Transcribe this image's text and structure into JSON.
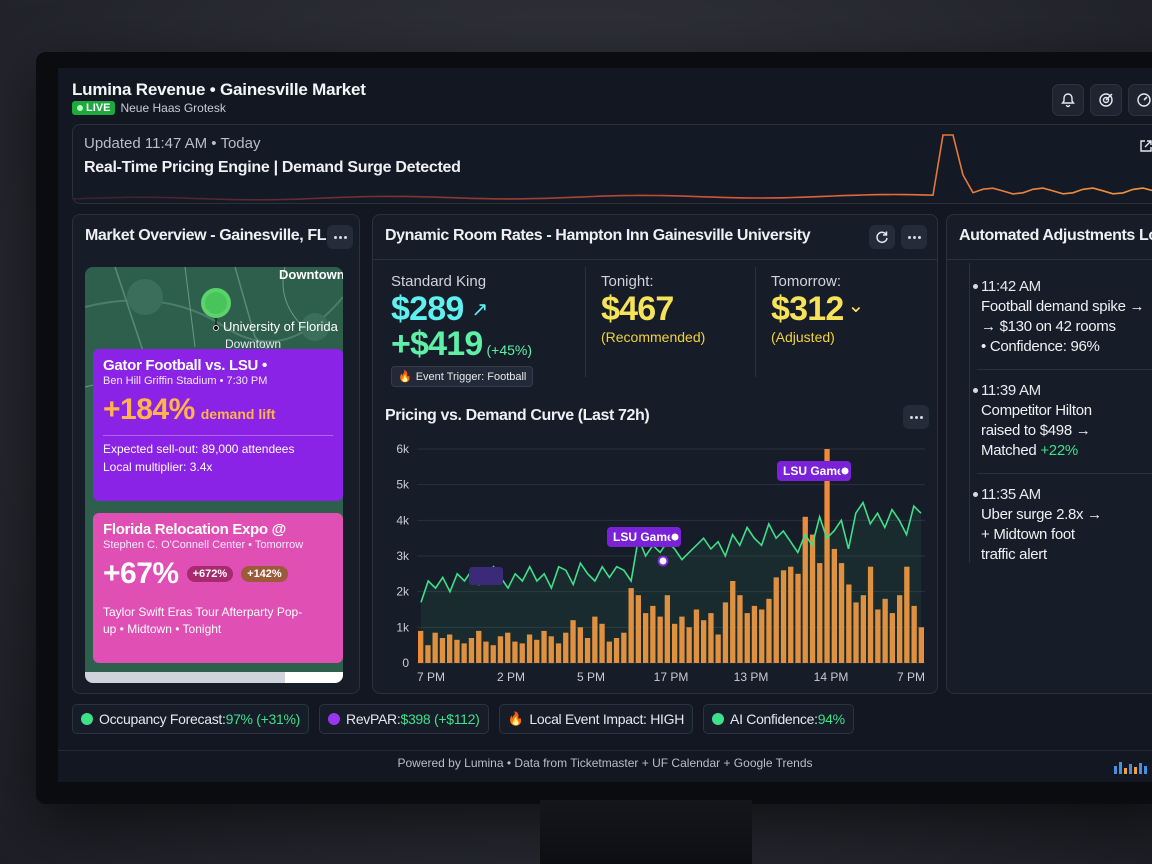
{
  "header": {
    "title": "Lumina Revenue • Gainesville Market",
    "live_label": "LIVE",
    "font_tag": "Neue Haas Grotesk"
  },
  "banner": {
    "updated": "Updated 11:47 AM • Today",
    "headline": "Real-Time Pricing Engine | Demand Surge Detected",
    "spark_color": "#f08a3c"
  },
  "market": {
    "title": "Market Overview - Gainesville, FL",
    "map_labels": [
      "Downtown",
      "University of Florida",
      "Downtown"
    ],
    "cards": [
      {
        "title": "Gator Football vs. LSU •",
        "subtitle": "Ben Hill Griffin Stadium • 7:30 PM",
        "big": "+184%",
        "lift": "demand lift",
        "line1": "Expected sell-out: 89,000 attendees",
        "line2": "Local multiplier: 3.4x"
      },
      {
        "title": "Florida Relocation Expo @",
        "subtitle": "Stephen C. O'Connell Center • Tomorrow",
        "big": "+67%",
        "pill1": "+672%",
        "pill2": "+142%",
        "line1": "Taylor Swift Eras Tour Afterparty Pop-",
        "line2": "up • Midtown • Tonight"
      }
    ]
  },
  "rates": {
    "title": "Dynamic Room Rates - Hampton Inn Gainesville University",
    "standard": {
      "label": "Standard King",
      "price": "$289",
      "arrow": "↗",
      "surge": "+$419",
      "pct": "(+45%)",
      "trigger": "Event Trigger: Football"
    },
    "tonight": {
      "label": "Tonight:",
      "price": "$467",
      "note": "(Recommended)"
    },
    "tomorrow": {
      "label": "Tomorrow:",
      "price": "$312",
      "chevron": "⌄",
      "note": "(Adjusted)"
    }
  },
  "chart_data": {
    "type": "bar",
    "title": "Pricing vs. Demand Curve (Last 72h)",
    "y_ticks": [
      "6k",
      "5k",
      "4k",
      "3k",
      "2k",
      "1k",
      "0"
    ],
    "ylim": [
      0,
      6000
    ],
    "x_ticks": [
      "7 PM",
      "2 PM",
      "5 PM",
      "17 PM",
      "13 PM",
      "14 PM",
      "7 PM"
    ],
    "bars": [
      900,
      500,
      850,
      700,
      800,
      650,
      550,
      700,
      900,
      600,
      500,
      750,
      850,
      600,
      550,
      800,
      650,
      900,
      750,
      550,
      850,
      1200,
      1000,
      700,
      1300,
      1100,
      600,
      700,
      850,
      2100,
      1900,
      1400,
      1600,
      1300,
      1900,
      1100,
      1300,
      1000,
      1500,
      1200,
      1400,
      800,
      1700,
      2300,
      1900,
      1400,
      1600,
      1500,
      1800,
      2400,
      2600,
      2700,
      2500,
      4100,
      3600,
      2800,
      6000,
      3200,
      2800,
      2200,
      1700,
      1900,
      2700,
      1500,
      1800,
      1400,
      1900,
      2700,
      1600,
      1000
    ],
    "line": [
      1700,
      2300,
      2100,
      2400,
      2000,
      2500,
      2300,
      2600,
      2200,
      2400,
      2700,
      2400,
      2100,
      2500,
      2300,
      2700,
      2300,
      2500,
      2100,
      2700,
      2600,
      2200,
      2800,
      2500,
      2300,
      2700,
      2400,
      2700,
      2600,
      2300,
      3500,
      3000,
      3300,
      3100,
      3400,
      3200,
      2900,
      3100,
      3300,
      3500,
      3200,
      3400,
      3000,
      3600,
      3300,
      3800,
      3500,
      3300,
      3900,
      3500,
      3700,
      3400,
      3100,
      3600,
      3300,
      4100,
      3500,
      3700,
      4000,
      3200,
      4200,
      4500,
      3900,
      4200,
      3800,
      4300,
      4000,
      3600,
      4400,
      4200
    ],
    "bar_color": "#ee8a3a",
    "line_color": "#3ee08a",
    "annotations": [
      "LSU Game",
      "LSU Game"
    ]
  },
  "log": {
    "title": "Automated Adjustments Log",
    "items": [
      {
        "time": "11:42 AM",
        "l1": "Football demand spike →",
        "l2": "→ $130 on 42 rooms",
        "l3": "• Confidence: 96%"
      },
      {
        "time": "11:39 AM",
        "l1": "Competitor Hilton",
        "l2": "raised to $498 →",
        "l3a": "Matched ",
        "l3b": "+22%"
      },
      {
        "time": "11:35 AM",
        "l1": "Uber surge 2.8x →",
        "l2": "+ Midtown foot",
        "l3": "traffic alert"
      }
    ]
  },
  "chips": {
    "occupancy_label": "Occupancy Forecast: ",
    "occupancy_value": "97% (+31%)",
    "revpar_label": "RevPAR: ",
    "revpar_value": "$398 (+$112)",
    "event_icon": "🔥",
    "event_label": "Local Event Impact: HIGH",
    "ai_label": "AI Confidence: ",
    "ai_value": "94%"
  },
  "footer": "Powered by Lumina • Data from Ticketmaster + UF Calendar + Google Trends",
  "colors": {
    "accent_green": "#3ee08a",
    "purple": "#8a23e6",
    "pink": "#e04fb3",
    "orange": "#ee8a3a",
    "cyan": "#5ff0f0",
    "yellow": "#f7e35a"
  }
}
